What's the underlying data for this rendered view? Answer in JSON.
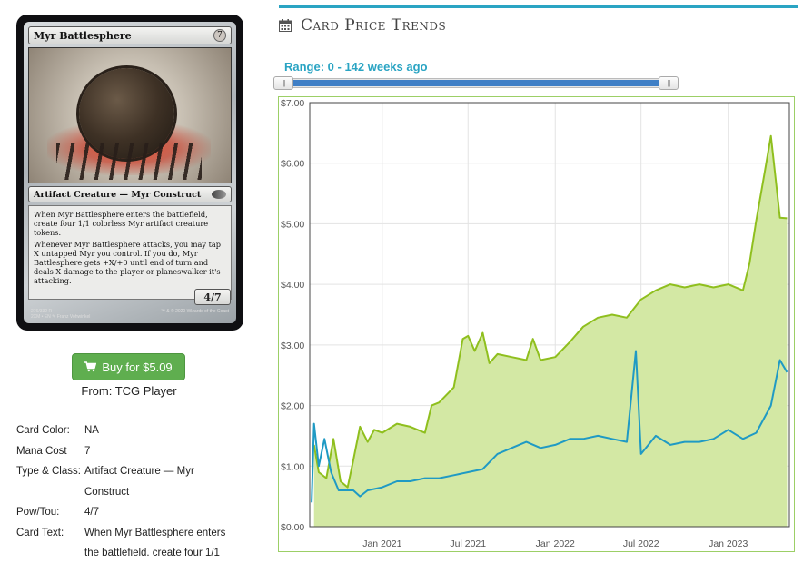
{
  "card": {
    "name": "Myr Battlesphere",
    "mana_symbol": "7",
    "type_line": "Artifact Creature — Myr Construct",
    "rules_text": [
      "When Myr Battlesphere enters the battlefield, create four 1/1 colorless Myr artifact creature tokens.",
      "Whenever Myr Battlesphere attacks, you may tap X untapped Myr you control. If you do, Myr Battlesphere gets +X/+0 until end of turn and deals X damage to the player or planeswalker it's attacking."
    ],
    "pt": "4/7",
    "footer_left": "276/332 R\n2XM • EN ✎ Franz Vohwinkel",
    "footer_right": "™ & © 2020 Wizards of the Coast"
  },
  "buy": {
    "label": "Buy for $5.09",
    "icon": "cart-icon",
    "color": "#5fae4f"
  },
  "from": "From: TCG Player",
  "info": [
    {
      "key": "Card Color:",
      "value": "NA"
    },
    {
      "key": "Mana Cost",
      "value": "7"
    },
    {
      "key": "Type & Class:",
      "value": "Artifact Creature — Myr"
    },
    {
      "key": "",
      "value": "Construct"
    },
    {
      "key": "Pow/Tou:",
      "value": "4/7"
    },
    {
      "key": "Card Text:",
      "value": "When Myr Battlesphere enters"
    },
    {
      "key": "",
      "value": "the battlefield. create four 1/1"
    }
  ],
  "header": {
    "title": "Card Price Trends",
    "icon": "calendar-icon",
    "accent": "#2aa4c3"
  },
  "range": {
    "label": "Range: 0 - 142 weeks ago",
    "handle_glyph": "|||"
  },
  "chart_data": {
    "type": "line",
    "title": "",
    "y_ticks": [
      "$0.00",
      "$1.00",
      "$2.00",
      "$3.00",
      "$4.00",
      "$5.00",
      "$6.00",
      "$7.00"
    ],
    "x_ticks": [
      "Jan 2021",
      "Jul 2021",
      "Jan 2022",
      "Jul 2022",
      "Jan 2023"
    ],
    "x_tick_dates": [
      "2021-01-01",
      "2021-07-01",
      "2022-01-01",
      "2022-07-01",
      "2023-01-01"
    ],
    "xlim": [
      "2020-08-01",
      "2023-05-10"
    ],
    "ylim": [
      0,
      7
    ],
    "grid": true,
    "series": [
      {
        "color": "#8fbf1e",
        "fill": "#d3e8a4",
        "points": [
          [
            "2020-08-10",
            1.35
          ],
          [
            "2020-08-20",
            0.9
          ],
          [
            "2020-09-05",
            0.8
          ],
          [
            "2020-09-20",
            1.45
          ],
          [
            "2020-10-05",
            0.75
          ],
          [
            "2020-10-20",
            0.65
          ],
          [
            "2020-11-01",
            1.1
          ],
          [
            "2020-11-15",
            1.65
          ],
          [
            "2020-12-01",
            1.4
          ],
          [
            "2020-12-15",
            1.6
          ],
          [
            "2021-01-01",
            1.55
          ],
          [
            "2021-02-01",
            1.7
          ],
          [
            "2021-03-01",
            1.65
          ],
          [
            "2021-04-01",
            1.55
          ],
          [
            "2021-04-15",
            2.0
          ],
          [
            "2021-05-01",
            2.05
          ],
          [
            "2021-06-01",
            2.3
          ],
          [
            "2021-06-20",
            3.1
          ],
          [
            "2021-07-01",
            3.15
          ],
          [
            "2021-07-15",
            2.9
          ],
          [
            "2021-08-01",
            3.2
          ],
          [
            "2021-08-15",
            2.7
          ],
          [
            "2021-09-01",
            2.85
          ],
          [
            "2021-10-01",
            2.8
          ],
          [
            "2021-11-01",
            2.75
          ],
          [
            "2021-11-15",
            3.1
          ],
          [
            "2021-12-01",
            2.75
          ],
          [
            "2022-01-01",
            2.8
          ],
          [
            "2022-02-01",
            3.05
          ],
          [
            "2022-03-01",
            3.3
          ],
          [
            "2022-04-01",
            3.45
          ],
          [
            "2022-05-01",
            3.5
          ],
          [
            "2022-06-01",
            3.45
          ],
          [
            "2022-07-01",
            3.75
          ],
          [
            "2022-08-01",
            3.9
          ],
          [
            "2022-09-01",
            4.0
          ],
          [
            "2022-10-01",
            3.95
          ],
          [
            "2022-11-01",
            4.0
          ],
          [
            "2022-12-01",
            3.95
          ],
          [
            "2023-01-01",
            4.0
          ],
          [
            "2023-02-01",
            3.9
          ],
          [
            "2023-02-15",
            4.35
          ],
          [
            "2023-03-01",
            5.05
          ],
          [
            "2023-03-20",
            5.9
          ],
          [
            "2023-04-01",
            6.45
          ],
          [
            "2023-04-20",
            5.1
          ],
          [
            "2023-05-05",
            5.09
          ]
        ]
      },
      {
        "color": "#1f9ac4",
        "points": [
          [
            "2020-08-05",
            0.4
          ],
          [
            "2020-08-10",
            1.7
          ],
          [
            "2020-08-20",
            1.0
          ],
          [
            "2020-09-01",
            1.45
          ],
          [
            "2020-09-15",
            0.9
          ],
          [
            "2020-10-01",
            0.6
          ],
          [
            "2020-11-01",
            0.6
          ],
          [
            "2020-11-15",
            0.5
          ],
          [
            "2020-12-01",
            0.6
          ],
          [
            "2021-01-01",
            0.65
          ],
          [
            "2021-02-01",
            0.75
          ],
          [
            "2021-03-01",
            0.75
          ],
          [
            "2021-04-01",
            0.8
          ],
          [
            "2021-05-01",
            0.8
          ],
          [
            "2021-06-01",
            0.85
          ],
          [
            "2021-07-01",
            0.9
          ],
          [
            "2021-08-01",
            0.95
          ],
          [
            "2021-09-01",
            1.2
          ],
          [
            "2021-10-01",
            1.3
          ],
          [
            "2021-11-01",
            1.4
          ],
          [
            "2021-12-01",
            1.3
          ],
          [
            "2022-01-01",
            1.35
          ],
          [
            "2022-02-01",
            1.45
          ],
          [
            "2022-03-01",
            1.45
          ],
          [
            "2022-04-01",
            1.5
          ],
          [
            "2022-05-01",
            1.45
          ],
          [
            "2022-06-01",
            1.4
          ],
          [
            "2022-06-20",
            2.9
          ],
          [
            "2022-07-01",
            1.2
          ],
          [
            "2022-08-01",
            1.5
          ],
          [
            "2022-09-01",
            1.35
          ],
          [
            "2022-10-01",
            1.4
          ],
          [
            "2022-11-01",
            1.4
          ],
          [
            "2022-12-01",
            1.45
          ],
          [
            "2023-01-01",
            1.6
          ],
          [
            "2023-02-01",
            1.45
          ],
          [
            "2023-03-01",
            1.55
          ],
          [
            "2023-04-01",
            2.0
          ],
          [
            "2023-04-20",
            2.75
          ],
          [
            "2023-05-05",
            2.55
          ]
        ]
      }
    ]
  }
}
